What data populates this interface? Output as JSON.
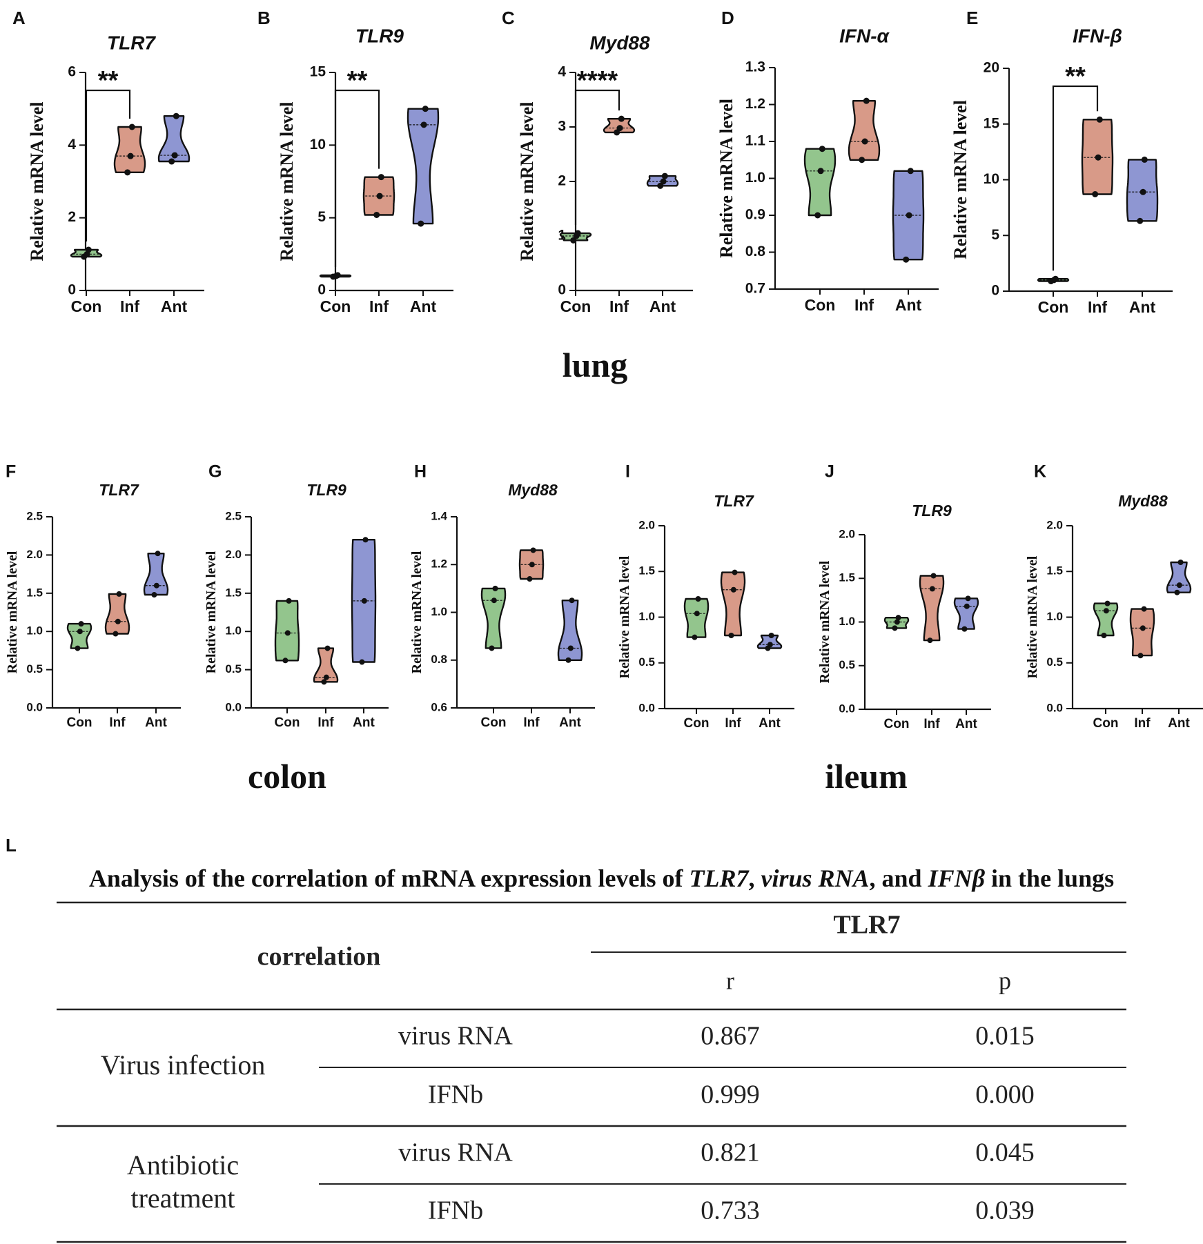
{
  "groups": [
    "Con",
    "Inf",
    "Ant"
  ],
  "group_colors": [
    "#93c58d",
    "#d89a88",
    "#8e96d2"
  ],
  "ylabel": "Relative  mRNA level",
  "section_labels": {
    "lung": "lung",
    "colon": "colon",
    "ileum": "ileum"
  },
  "chart_data": [
    {
      "panel": "A",
      "type": "violin",
      "title": "TLR7",
      "tissue": "lung",
      "categories": [
        "Con",
        "Inf",
        "Ant"
      ],
      "ylim": [
        0,
        6
      ],
      "yticks": [
        0,
        2,
        4,
        6
      ],
      "points": [
        [
          0.93,
          1.0,
          1.12
        ],
        [
          3.25,
          3.7,
          4.5
        ],
        [
          3.55,
          3.72,
          4.8
        ]
      ],
      "sig": {
        "from": 0,
        "to": 1,
        "label": "**"
      }
    },
    {
      "panel": "B",
      "type": "violin",
      "title": "TLR9",
      "tissue": "lung",
      "categories": [
        "Con",
        "Inf",
        "Ant"
      ],
      "ylim": [
        0,
        15
      ],
      "yticks": [
        0,
        5,
        10,
        15
      ],
      "points": [
        [
          0.95,
          1.0,
          1.05
        ],
        [
          5.2,
          6.5,
          7.8
        ],
        [
          4.6,
          11.4,
          12.5
        ]
      ],
      "sig": {
        "from": 0,
        "to": 1,
        "label": "**"
      }
    },
    {
      "panel": "C",
      "type": "violin",
      "title": "Myd88",
      "tissue": "lung",
      "categories": [
        "Con",
        "Inf",
        "Ant"
      ],
      "ylim": [
        0,
        4
      ],
      "yticks": [
        0,
        1,
        2,
        3,
        4
      ],
      "points": [
        [
          0.92,
          1.0,
          1.05
        ],
        [
          2.9,
          2.98,
          3.15
        ],
        [
          1.92,
          2.0,
          2.1
        ]
      ],
      "sig": {
        "from": 0,
        "to": 1,
        "label": "****"
      }
    },
    {
      "panel": "D",
      "type": "violin",
      "title": "IFN-α",
      "tissue": "lung",
      "categories": [
        "Con",
        "Inf",
        "Ant"
      ],
      "ylim": [
        0.7,
        1.3
      ],
      "yticks": [
        0.7,
        0.8,
        0.9,
        1.0,
        1.1,
        1.2,
        1.3
      ],
      "points": [
        [
          0.9,
          1.02,
          1.08
        ],
        [
          1.05,
          1.1,
          1.21
        ],
        [
          0.78,
          0.9,
          1.02
        ]
      ]
    },
    {
      "panel": "E",
      "type": "violin",
      "title": "IFN-β",
      "tissue": "lung",
      "categories": [
        "Con",
        "Inf",
        "Ant"
      ],
      "ylim": [
        0,
        20
      ],
      "yticks": [
        0,
        5,
        10,
        15,
        20
      ],
      "points": [
        [
          0.9,
          1.0,
          1.1
        ],
        [
          8.7,
          12.0,
          15.4
        ],
        [
          6.3,
          8.9,
          11.8
        ]
      ],
      "sig": {
        "from": 0,
        "to": 1,
        "label": "**"
      }
    },
    {
      "panel": "F",
      "type": "violin",
      "title": "TLR7",
      "tissue": "colon",
      "categories": [
        "Con",
        "Inf",
        "Ant"
      ],
      "ylim": [
        0,
        2.5
      ],
      "yticks": [
        0.0,
        0.5,
        1.0,
        1.5,
        2.0,
        2.5
      ],
      "points": [
        [
          0.78,
          1.0,
          1.1
        ],
        [
          0.97,
          1.13,
          1.49
        ],
        [
          1.48,
          1.6,
          2.02
        ]
      ]
    },
    {
      "panel": "G",
      "type": "violin",
      "title": "TLR9",
      "tissue": "colon",
      "categories": [
        "Con",
        "Inf",
        "Ant"
      ],
      "ylim": [
        0,
        2.5
      ],
      "yticks": [
        0.0,
        0.5,
        1.0,
        1.5,
        2.0,
        2.5
      ],
      "points": [
        [
          0.62,
          0.98,
          1.4
        ],
        [
          0.34,
          0.4,
          0.78
        ],
        [
          0.6,
          1.4,
          2.2
        ]
      ]
    },
    {
      "panel": "H",
      "type": "violin",
      "title": "Myd88",
      "tissue": "colon",
      "categories": [
        "Con",
        "Inf",
        "Ant"
      ],
      "ylim": [
        0.6,
        1.4
      ],
      "yticks": [
        0.6,
        0.8,
        1.0,
        1.2,
        1.4
      ],
      "points": [
        [
          0.85,
          1.05,
          1.1
        ],
        [
          1.14,
          1.2,
          1.26
        ],
        [
          0.8,
          0.85,
          1.05
        ]
      ]
    },
    {
      "panel": "I",
      "type": "violin",
      "title": "TLR7",
      "tissue": "ileum",
      "categories": [
        "Con",
        "Inf",
        "Ant"
      ],
      "ylim": [
        0,
        2.0
      ],
      "yticks": [
        0.0,
        0.5,
        1.0,
        1.5,
        2.0
      ],
      "points": [
        [
          0.78,
          1.04,
          1.2
        ],
        [
          0.8,
          1.3,
          1.49
        ],
        [
          0.66,
          0.7,
          0.8
        ]
      ]
    },
    {
      "panel": "J",
      "type": "violin",
      "title": "TLR9",
      "tissue": "ileum",
      "categories": [
        "Con",
        "Inf",
        "Ant"
      ],
      "ylim": [
        0,
        2.0
      ],
      "yticks": [
        0.0,
        0.5,
        1.0,
        1.5,
        2.0
      ],
      "points": [
        [
          0.93,
          1.0,
          1.05
        ],
        [
          0.79,
          1.38,
          1.53
        ],
        [
          0.92,
          1.18,
          1.27
        ]
      ]
    },
    {
      "panel": "K",
      "type": "violin",
      "title": "Myd88",
      "tissue": "ileum",
      "categories": [
        "Con",
        "Inf",
        "Ant"
      ],
      "ylim": [
        0,
        2.0
      ],
      "yticks": [
        0.0,
        0.5,
        1.0,
        1.5,
        2.0
      ],
      "points": [
        [
          0.8,
          1.07,
          1.15
        ],
        [
          0.58,
          0.88,
          1.09
        ],
        [
          1.27,
          1.35,
          1.6
        ]
      ]
    },
    {
      "panel": "L",
      "type": "table",
      "title_parts": [
        [
          "Analysis of the correlation of mRNA expression levels of ",
          false
        ],
        [
          "TLR7",
          true
        ],
        [
          ", ",
          false
        ],
        [
          "virus RNA",
          true
        ],
        [
          ", and ",
          false
        ],
        [
          "IFNβ",
          true
        ],
        [
          " in the lungs",
          false
        ]
      ],
      "corner_header": "correlation",
      "group_header": "TLR7",
      "columns": [
        "r",
        "p"
      ],
      "rows": [
        {
          "group": "Virus infection",
          "item": "virus RNA",
          "r": "0.867",
          "p": "0.015"
        },
        {
          "group": "Virus infection",
          "item": "IFNb",
          "r": "0.999",
          "p": "0.000"
        },
        {
          "group": "Antibiotic\ntreatment",
          "item": "virus RNA",
          "r": "0.821",
          "p": "0.045"
        },
        {
          "group": "Antibiotic\ntreatment",
          "item": "IFNb",
          "r": "0.733",
          "p": "0.039"
        }
      ],
      "group_labels": [
        "Virus infection",
        "Antibiotic",
        "treatment"
      ]
    }
  ]
}
